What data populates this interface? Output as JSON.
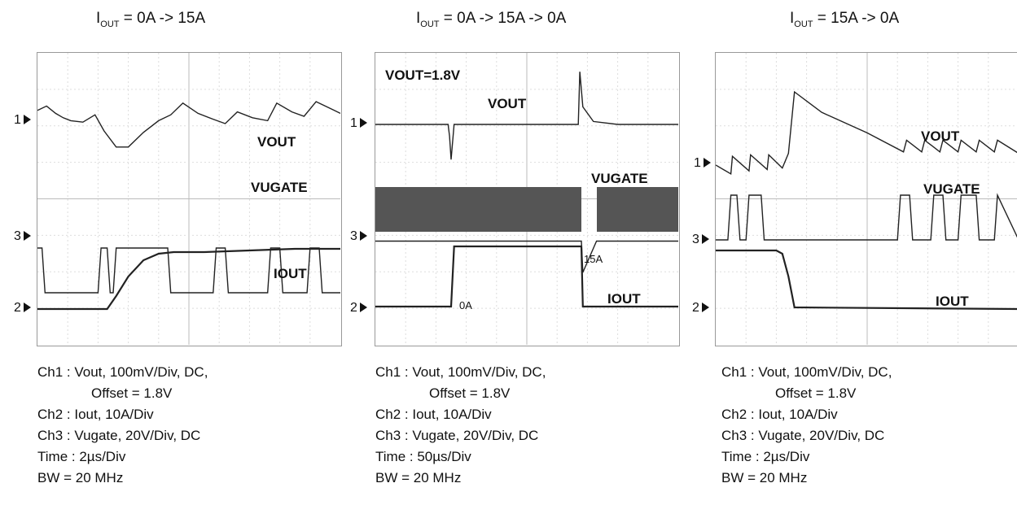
{
  "chart_data": [
    {
      "type": "line",
      "title_main": "I",
      "title_sub": "OUT",
      "title_rest": " = 0A -> 15A",
      "channel_markers": [
        "1",
        "3",
        "2"
      ],
      "trace_labels": [
        "VOUT",
        "VUGATE",
        "IOUT"
      ],
      "notes": [
        "Ch1  : Vout, 100mV/Div, DC,",
        "Offset = 1.8V",
        "Ch2  : Iout, 10A/Div",
        "Ch3  : Vugate, 20V/Div, DC",
        "Time : 2µs/Div",
        "BW = 20 MHz"
      ],
      "series": [
        {
          "label": "VOUT",
          "x": [
            0,
            0.3,
            0.6,
            0.85,
            1.1,
            1.5,
            1.9,
            2.2,
            2.6,
            3.0,
            3.5,
            4.0,
            4.4,
            4.8,
            5.3,
            5.8,
            6.2,
            6.6,
            7.1,
            7.6,
            7.9,
            8.4,
            8.8,
            9.2,
            9.8,
            10
          ],
          "y": [
            0.2,
            0.35,
            0.1,
            -0.05,
            -0.15,
            -0.2,
            0.05,
            -0.5,
            -1.05,
            -1.05,
            -0.55,
            -0.15,
            0.05,
            0.45,
            0.1,
            -0.1,
            -0.25,
            0.15,
            -0.05,
            -0.15,
            0.45,
            0.15,
            0.0,
            0.5,
            0.2,
            0.1
          ]
        },
        {
          "label": "VUGATE",
          "x": [
            0,
            0.15,
            0.25,
            0.4,
            2.0,
            2.1,
            2.3,
            2.4,
            2.5,
            2.6,
            4.3,
            4.4,
            5.8,
            5.9,
            6.2,
            6.3,
            7.6,
            7.7,
            8.0,
            8.1,
            8.9,
            9.0,
            9.3,
            9.4,
            10
          ],
          "y": [
            2.6,
            2.6,
            1.6,
            1.6,
            1.6,
            2.6,
            2.6,
            1.6,
            1.6,
            2.6,
            2.6,
            1.6,
            1.6,
            2.6,
            2.6,
            1.6,
            1.6,
            2.6,
            2.6,
            1.6,
            1.6,
            2.6,
            2.6,
            1.6,
            1.6
          ]
        },
        {
          "label": "IOUT",
          "x": [
            0,
            2.3,
            2.6,
            3.0,
            3.5,
            4.0,
            4.5,
            5.5,
            7.0,
            8.5,
            10
          ],
          "y": [
            0,
            0,
            0.4,
            1.0,
            1.5,
            1.7,
            1.75,
            1.75,
            1.8,
            1.85,
            1.85
          ]
        }
      ]
    },
    {
      "type": "line",
      "title_main": "I",
      "title_sub": "OUT",
      "title_rest": " = 0A -> 15A -> 0A",
      "channel_markers": [
        "1",
        "3",
        "2"
      ],
      "trace_labels": [
        "VOUT",
        "VUGATE",
        "IOUT"
      ],
      "annotations": [
        "VOUT=1.8V",
        "0A",
        "15A"
      ],
      "notes": [
        "Ch1  : Vout, 100mV/Div, DC,",
        "Offset = 1.8V",
        "Ch2  : Iout, 10A/Div",
        "Ch3  : Vugate, 20V/Div, DC",
        "Time : 50µs/Div",
        "BW = 20 MHz"
      ],
      "series": [
        {
          "label": "VOUT",
          "x": [
            0,
            2.4,
            2.45,
            2.5,
            2.6,
            6.7,
            6.75,
            6.85,
            7.2,
            8,
            10
          ],
          "y": [
            0,
            0,
            -0.4,
            -1.2,
            0,
            0,
            1.8,
            0.6,
            0.1,
            0,
            0
          ]
        },
        {
          "label": "VUGATE",
          "x": [
            0,
            6.8,
            6.85,
            7.3,
            10
          ],
          "y": [
            2.3,
            2.3,
            1.6,
            2.3,
            2.3
          ]
        },
        {
          "label": "IOUT",
          "x": [
            0,
            2.5,
            2.6,
            6.8,
            6.85,
            10
          ],
          "y": [
            0,
            0,
            1.85,
            1.85,
            0,
            0
          ]
        }
      ]
    },
    {
      "type": "line",
      "title_main": "I",
      "title_sub": "OUT",
      "title_rest": " = 15A -> 0A",
      "channel_markers": [
        "1",
        "3",
        "2"
      ],
      "trace_labels": [
        "VOUT",
        "VUGATE",
        "IOUT"
      ],
      "notes": [
        "Ch1  : Vout, 100mV/Div, DC,",
        "Offset = 1.8V",
        "Ch2  : Iout, 10A/Div",
        "Ch3  : Vugate, 20V/Div, DC",
        "Time : 2µs/Div",
        "BW = 20 MHz"
      ],
      "series": [
        {
          "label": "VOUT",
          "x": [
            0,
            0.5,
            0.55,
            1.1,
            1.15,
            1.7,
            1.75,
            2.2,
            2.4,
            2.6,
            3.5,
            5.0,
            6.2,
            6.3,
            6.8,
            6.9,
            7.4,
            7.5,
            8.0,
            8.1,
            8.6,
            8.7,
            9.2,
            9.3,
            10
          ],
          "y": [
            0,
            -0.3,
            0.3,
            -0.2,
            0.35,
            -0.15,
            0.35,
            -0.1,
            0.4,
            2.5,
            1.8,
            1.1,
            0.45,
            0.85,
            0.45,
            0.85,
            0.45,
            0.85,
            0.45,
            0.85,
            0.45,
            0.85,
            0.45,
            0.85,
            0.4
          ]
        },
        {
          "label": "VUGATE",
          "x": [
            0,
            0.4,
            0.5,
            0.7,
            0.8,
            1.0,
            1.1,
            1.5,
            1.6,
            2.2,
            2.3,
            6.0,
            6.1,
            6.4,
            6.5,
            7.1,
            7.2,
            7.5,
            7.6,
            8.0,
            8.1,
            8.6,
            8.7,
            9.2,
            9.3,
            10
          ],
          "y": [
            1.6,
            1.6,
            2.6,
            2.6,
            1.6,
            1.6,
            2.6,
            2.6,
            1.6,
            1.6,
            1.6,
            1.6,
            2.6,
            2.6,
            1.6,
            1.6,
            2.6,
            2.6,
            1.6,
            1.6,
            2.6,
            2.6,
            1.6,
            1.6,
            2.6,
            1.6
          ]
        },
        {
          "label": "IOUT",
          "x": [
            0,
            2.0,
            2.2,
            2.4,
            2.6,
            10
          ],
          "y": [
            1.8,
            1.8,
            1.7,
            1.0,
            0.05,
            0
          ]
        }
      ]
    }
  ]
}
